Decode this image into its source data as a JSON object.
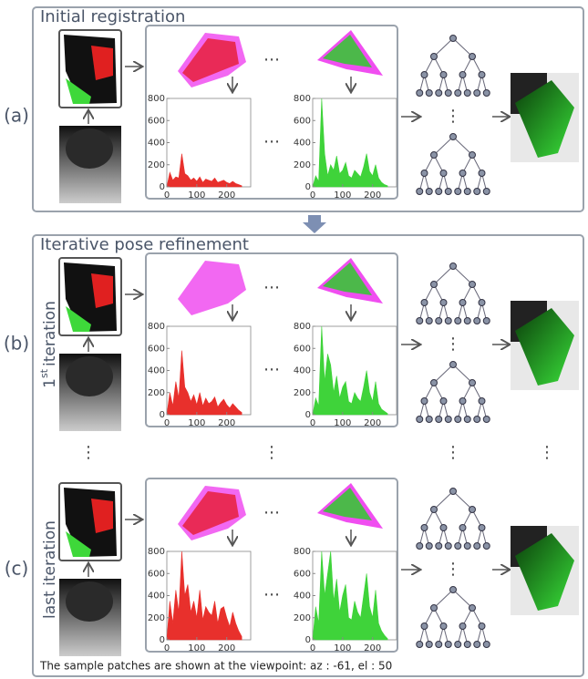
{
  "sections": [
    {
      "title": "Initial registration",
      "label": "(a)"
    },
    {
      "title": "Iterative pose refinement",
      "rows": [
        {
          "label": "(b)",
          "iteration": {
            "number": "1",
            "suffix": "st",
            "text": "iteration"
          }
        },
        {
          "label": "(c)",
          "iteration": {
            "text": "last iteration"
          }
        }
      ]
    }
  ],
  "ellipsis_h": "⋯",
  "ellipsis_v": "⋮",
  "footer": "The sample patches are shown at the viewpoint: az : -61, el : 50",
  "chart_data": [
    {
      "type": "area",
      "color": "#e8302c",
      "xlim": [
        0,
        280
      ],
      "ylim": [
        0,
        800
      ],
      "xticks": [
        0,
        100,
        200
      ],
      "yticks": [
        0,
        200,
        400,
        600,
        800
      ],
      "x": [
        0,
        10,
        20,
        30,
        40,
        50,
        60,
        70,
        80,
        90,
        100,
        110,
        120,
        130,
        140,
        150,
        160,
        170,
        180,
        190,
        200,
        210,
        220,
        230,
        240,
        250
      ],
      "values": [
        0,
        130,
        60,
        90,
        80,
        300,
        120,
        100,
        60,
        80,
        50,
        90,
        40,
        70,
        60,
        50,
        80,
        40,
        50,
        60,
        40,
        30,
        50,
        30,
        20,
        10
      ]
    },
    {
      "type": "area",
      "color": "#3fd33a",
      "xlim": [
        0,
        280
      ],
      "ylim": [
        0,
        800
      ],
      "xticks": [
        0,
        100,
        200
      ],
      "yticks": [
        0,
        200,
        400,
        600,
        800
      ],
      "x": [
        0,
        10,
        20,
        30,
        40,
        50,
        60,
        70,
        80,
        90,
        100,
        110,
        120,
        130,
        140,
        150,
        160,
        170,
        180,
        190,
        200,
        210,
        220,
        230,
        240,
        250
      ],
      "values": [
        0,
        100,
        50,
        800,
        300,
        100,
        200,
        150,
        280,
        120,
        150,
        220,
        100,
        80,
        150,
        120,
        90,
        180,
        300,
        140,
        100,
        200,
        80,
        40,
        20,
        10
      ]
    },
    {
      "type": "area",
      "color": "#e8302c",
      "xlim": [
        0,
        280
      ],
      "ylim": [
        0,
        800
      ],
      "xticks": [
        0,
        100,
        200
      ],
      "yticks": [
        0,
        200,
        400,
        600,
        800
      ],
      "x": [
        0,
        10,
        20,
        30,
        40,
        50,
        60,
        70,
        80,
        90,
        100,
        110,
        120,
        130,
        140,
        150,
        160,
        170,
        180,
        190,
        200,
        210,
        220,
        230,
        240,
        250
      ],
      "values": [
        0,
        200,
        80,
        300,
        150,
        580,
        250,
        200,
        120,
        180,
        90,
        200,
        80,
        150,
        100,
        120,
        160,
        70,
        110,
        140,
        90,
        60,
        100,
        70,
        40,
        20
      ]
    },
    {
      "type": "area",
      "color": "#3fd33a",
      "xlim": [
        0,
        280
      ],
      "ylim": [
        0,
        800
      ],
      "xticks": [
        0,
        100,
        200
      ],
      "yticks": [
        0,
        200,
        400,
        600,
        800
      ],
      "x": [
        0,
        10,
        20,
        30,
        40,
        50,
        60,
        70,
        80,
        90,
        100,
        110,
        120,
        130,
        140,
        150,
        160,
        170,
        180,
        190,
        200,
        210,
        220,
        230,
        240,
        250
      ],
      "values": [
        0,
        150,
        80,
        800,
        300,
        550,
        450,
        200,
        350,
        150,
        250,
        300,
        120,
        100,
        200,
        150,
        120,
        250,
        400,
        200,
        120,
        300,
        100,
        50,
        30,
        10
      ]
    },
    {
      "type": "area",
      "color": "#e8302c",
      "xlim": [
        0,
        280
      ],
      "ylim": [
        0,
        800
      ],
      "xticks": [
        0,
        100,
        200
      ],
      "yticks": [
        0,
        200,
        400,
        600,
        800
      ],
      "x": [
        0,
        10,
        20,
        30,
        40,
        50,
        60,
        70,
        80,
        90,
        100,
        110,
        120,
        130,
        140,
        150,
        160,
        170,
        180,
        190,
        200,
        210,
        220,
        230,
        240,
        250
      ],
      "values": [
        0,
        350,
        150,
        450,
        250,
        800,
        400,
        500,
        250,
        350,
        200,
        450,
        180,
        300,
        250,
        220,
        350,
        150,
        280,
        300,
        200,
        120,
        250,
        150,
        80,
        30
      ]
    },
    {
      "type": "area",
      "color": "#3fd33a",
      "xlim": [
        0,
        280
      ],
      "ylim": [
        0,
        800
      ],
      "xticks": [
        0,
        100,
        200
      ],
      "yticks": [
        0,
        200,
        400,
        600,
        800
      ],
      "x": [
        0,
        10,
        20,
        30,
        40,
        50,
        60,
        70,
        80,
        90,
        100,
        110,
        120,
        130,
        140,
        150,
        160,
        170,
        180,
        190,
        200,
        210,
        220,
        230,
        240,
        250
      ],
      "values": [
        0,
        300,
        150,
        800,
        400,
        600,
        800,
        350,
        550,
        250,
        400,
        500,
        200,
        180,
        350,
        250,
        200,
        400,
        600,
        300,
        200,
        450,
        150,
        80,
        40,
        10
      ]
    }
  ]
}
